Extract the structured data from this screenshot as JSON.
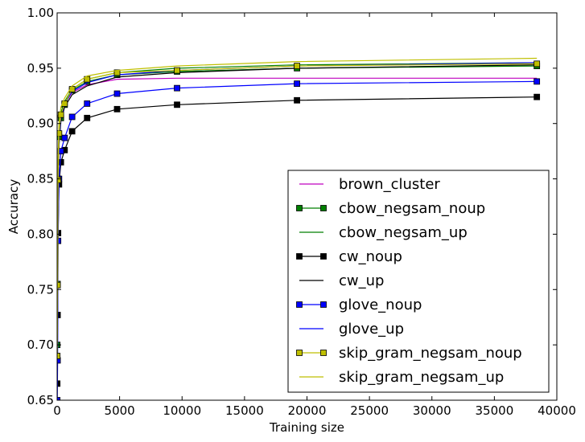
{
  "chart_data": {
    "type": "line",
    "title": "",
    "xlabel": "Training size",
    "ylabel": "Accuracy",
    "xlim": [
      0,
      40000
    ],
    "ylim": [
      0.65,
      1.0
    ],
    "xticks": [
      0,
      5000,
      10000,
      15000,
      20000,
      25000,
      30000,
      35000,
      40000
    ],
    "xtick_labels": [
      "0",
      "5000",
      "10000",
      "15000",
      "20000",
      "25000",
      "30000",
      "35000",
      "40000"
    ],
    "yticks": [
      0.65,
      0.7,
      0.75,
      0.8,
      0.85,
      0.9,
      0.95,
      1.0
    ],
    "ytick_labels": [
      "0.65",
      "0.70",
      "0.75",
      "0.80",
      "0.85",
      "0.90",
      "0.95",
      "1.00"
    ],
    "grid": false,
    "legend_position": "bottom-right",
    "x": [
      10,
      37,
      75,
      150,
      300,
      600,
      1200,
      2400,
      4800,
      9600,
      19200,
      38400
    ],
    "series": [
      {
        "name": "brown_cluster",
        "color": "#bf00bf",
        "marker": "none",
        "values": [
          0.7,
          0.76,
          0.84,
          0.885,
          0.905,
          0.918,
          0.928,
          0.935,
          0.94,
          0.941,
          0.941,
          0.941
        ]
      },
      {
        "name": "cbow_negsam_noup",
        "color": "#007f00",
        "marker": "square",
        "values": [
          0.7,
          0.755,
          0.85,
          0.888,
          0.905,
          0.917,
          0.93,
          0.938,
          0.944,
          0.947,
          0.95,
          0.952
        ]
      },
      {
        "name": "cbow_negsam_up",
        "color": "#007f00",
        "marker": "none",
        "values": [
          0.705,
          0.765,
          0.86,
          0.893,
          0.91,
          0.92,
          0.931,
          0.94,
          0.946,
          0.95,
          0.953,
          0.955
        ]
      },
      {
        "name": "cw_noup",
        "color": "#000000",
        "marker": "square",
        "values": [
          0.665,
          0.727,
          0.801,
          0.845,
          0.865,
          0.876,
          0.893,
          0.905,
          0.913,
          0.917,
          0.921,
          0.924
        ]
      },
      {
        "name": "cw_up",
        "color": "#000000",
        "marker": "none",
        "values": [
          0.69,
          0.75,
          0.84,
          0.88,
          0.902,
          0.915,
          0.926,
          0.934,
          0.942,
          0.946,
          0.95,
          0.953
        ]
      },
      {
        "name": "glove_noup",
        "color": "#0000ff",
        "marker": "square",
        "values": [
          0.65,
          0.686,
          0.794,
          0.85,
          0.875,
          0.887,
          0.906,
          0.918,
          0.927,
          0.932,
          0.936,
          0.938
        ]
      },
      {
        "name": "glove_up",
        "color": "#0000ff",
        "marker": "none",
        "values": [
          0.69,
          0.75,
          0.845,
          0.885,
          0.905,
          0.918,
          0.929,
          0.937,
          0.944,
          0.948,
          0.952,
          0.955
        ]
      },
      {
        "name": "skip_gram_negsam_noup",
        "color": "#bfbf00",
        "marker": "square",
        "values": [
          0.69,
          0.754,
          0.849,
          0.891,
          0.908,
          0.918,
          0.931,
          0.94,
          0.946,
          0.948,
          0.952,
          0.954
        ]
      },
      {
        "name": "skip_gram_negsam_up",
        "color": "#bfbf00",
        "marker": "none",
        "values": [
          0.71,
          0.775,
          0.87,
          0.9,
          0.915,
          0.923,
          0.934,
          0.943,
          0.948,
          0.952,
          0.956,
          0.959
        ]
      }
    ]
  }
}
